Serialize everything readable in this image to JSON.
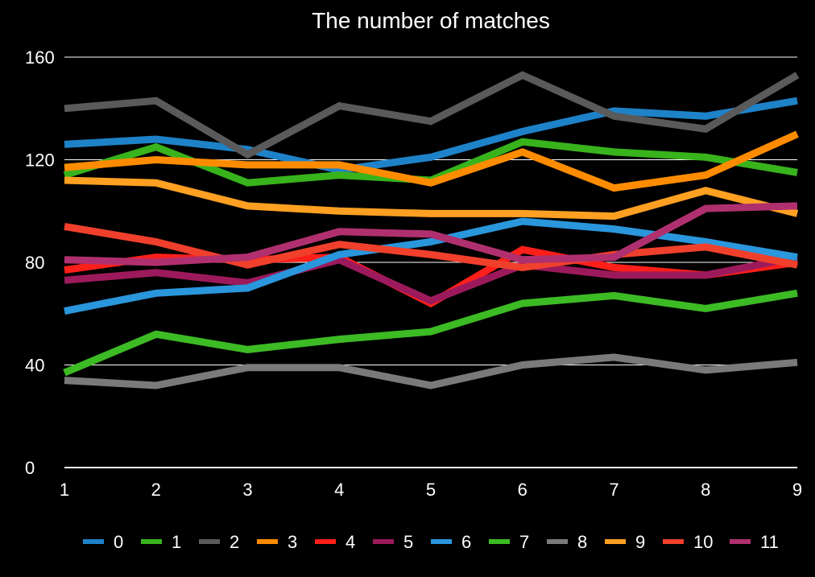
{
  "chart_data": {
    "type": "line",
    "title": "The number of matches",
    "xlabel": "",
    "ylabel": "",
    "x": [
      1,
      2,
      3,
      4,
      5,
      6,
      7,
      8,
      9
    ],
    "x_tick_labels": [
      "1",
      "2",
      "3",
      "4",
      "5",
      "6",
      "7",
      "8",
      "9"
    ],
    "ylim": [
      0,
      160
    ],
    "y_ticks": [
      0,
      40,
      80,
      120,
      160
    ],
    "y_tick_labels": [
      "0",
      "40",
      "80",
      "120",
      "160"
    ],
    "grid": "horizontal",
    "legend_position": "bottom",
    "series": [
      {
        "name": "0",
        "color": "#1e82c8",
        "values": [
          126,
          128,
          124,
          116,
          121,
          131,
          139,
          137,
          143
        ]
      },
      {
        "name": "1",
        "color": "#38b31c",
        "values": [
          114,
          125,
          111,
          114,
          112,
          127,
          123,
          121,
          115
        ]
      },
      {
        "name": "2",
        "color": "#5a5a5a",
        "values": [
          140,
          143,
          122,
          141,
          135,
          153,
          137,
          132,
          153
        ]
      },
      {
        "name": "3",
        "color": "#ff8c00",
        "values": [
          117,
          120,
          118,
          118,
          111,
          123,
          109,
          114,
          130
        ]
      },
      {
        "name": "4",
        "color": "#ff1f1a",
        "values": [
          77,
          82,
          81,
          82,
          64,
          85,
          78,
          75,
          80
        ]
      },
      {
        "name": "5",
        "color": "#9c1a5c",
        "values": [
          73,
          76,
          72,
          81,
          65,
          79,
          75,
          75,
          82
        ]
      },
      {
        "name": "6",
        "color": "#2a96dc",
        "values": [
          61,
          68,
          70,
          83,
          88,
          96,
          93,
          88,
          82
        ]
      },
      {
        "name": "7",
        "color": "#3cbb24",
        "values": [
          37,
          52,
          46,
          50,
          53,
          64,
          67,
          62,
          68
        ]
      },
      {
        "name": "8",
        "color": "#7a7a7a",
        "values": [
          34,
          32,
          39,
          39,
          32,
          40,
          43,
          38,
          41
        ]
      },
      {
        "name": "9",
        "color": "#ffa022",
        "values": [
          112,
          111,
          102,
          100,
          99,
          99,
          98,
          108,
          99
        ]
      },
      {
        "name": "10",
        "color": "#f0402c",
        "values": [
          94,
          88,
          79,
          87,
          83,
          78,
          83,
          86,
          79
        ]
      },
      {
        "name": "11",
        "color": "#b0306f",
        "values": [
          81,
          80,
          82,
          92,
          91,
          81,
          82,
          101,
          102
        ]
      }
    ]
  }
}
